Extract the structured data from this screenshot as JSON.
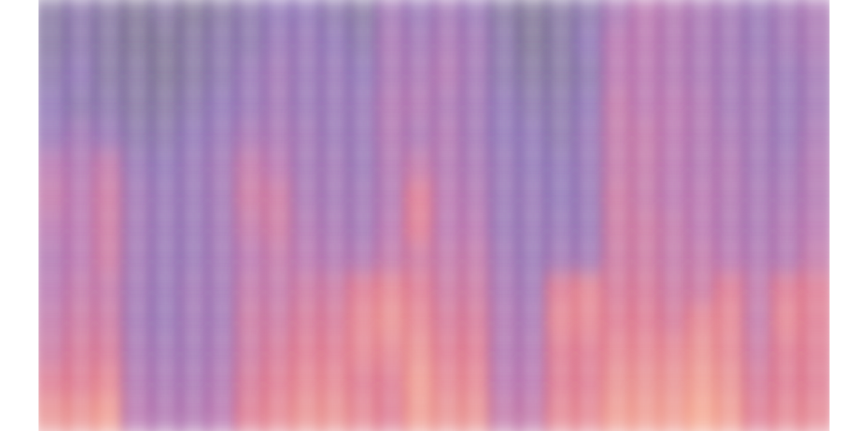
{
  "chart_data": {
    "type": "heatmap",
    "tick_labels": false,
    "xlim": [
      -0.5,
      27.5
    ],
    "ylim": [
      -0.5,
      13.5
    ],
    "color_range": [
      0,
      1
    ],
    "x": [
      0,
      1,
      2,
      3,
      4,
      5,
      6,
      7,
      8,
      9,
      10,
      11,
      12,
      13,
      14,
      15,
      16,
      17,
      18,
      19,
      20,
      21,
      22,
      23,
      24,
      25,
      26,
      27
    ],
    "y": [
      13,
      12,
      11,
      10,
      9,
      8,
      7,
      6,
      5,
      4,
      3,
      2,
      1,
      0
    ],
    "cells": [
      [
        0.15,
        0.2,
        0.15,
        0.1,
        0.15,
        0.1,
        0.15,
        0.2,
        0.25,
        0.25,
        0.2,
        0.15,
        0.35,
        0.3,
        0.35,
        0.3,
        0.15,
        0.1,
        0.15,
        0.2,
        0.4,
        0.5,
        0.45,
        0.4,
        0.35,
        0.3,
        0.35,
        0.4
      ],
      [
        0.15,
        0.2,
        0.15,
        0.1,
        0.1,
        0.15,
        0.2,
        0.2,
        0.3,
        0.3,
        0.25,
        0.2,
        0.4,
        0.35,
        0.4,
        0.35,
        0.2,
        0.1,
        0.15,
        0.25,
        0.5,
        0.5,
        0.45,
        0.4,
        0.35,
        0.3,
        0.35,
        0.4
      ],
      [
        0.2,
        0.25,
        0.15,
        0.15,
        0.1,
        0.15,
        0.2,
        0.3,
        0.35,
        0.3,
        0.3,
        0.25,
        0.4,
        0.4,
        0.45,
        0.35,
        0.2,
        0.15,
        0.15,
        0.2,
        0.5,
        0.5,
        0.45,
        0.4,
        0.35,
        0.35,
        0.3,
        0.35
      ],
      [
        0.25,
        0.2,
        0.2,
        0.15,
        0.15,
        0.2,
        0.25,
        0.3,
        0.35,
        0.3,
        0.3,
        0.3,
        0.45,
        0.45,
        0.4,
        0.35,
        0.25,
        0.2,
        0.2,
        0.25,
        0.55,
        0.5,
        0.5,
        0.45,
        0.35,
        0.35,
        0.3,
        0.35
      ],
      [
        0.3,
        0.35,
        0.3,
        0.2,
        0.2,
        0.25,
        0.3,
        0.4,
        0.4,
        0.35,
        0.3,
        0.3,
        0.45,
        0.4,
        0.45,
        0.35,
        0.25,
        0.25,
        0.2,
        0.3,
        0.55,
        0.55,
        0.5,
        0.45,
        0.4,
        0.35,
        0.3,
        0.4
      ],
      [
        0.5,
        0.45,
        0.55,
        0.3,
        0.25,
        0.3,
        0.35,
        0.55,
        0.5,
        0.35,
        0.35,
        0.3,
        0.45,
        0.55,
        0.45,
        0.4,
        0.3,
        0.25,
        0.25,
        0.3,
        0.55,
        0.55,
        0.5,
        0.45,
        0.45,
        0.35,
        0.35,
        0.45
      ],
      [
        0.55,
        0.5,
        0.6,
        0.35,
        0.3,
        0.3,
        0.35,
        0.6,
        0.6,
        0.4,
        0.35,
        0.35,
        0.45,
        0.7,
        0.5,
        0.45,
        0.3,
        0.3,
        0.25,
        0.3,
        0.6,
        0.55,
        0.5,
        0.5,
        0.45,
        0.4,
        0.4,
        0.45
      ],
      [
        0.5,
        0.5,
        0.6,
        0.35,
        0.3,
        0.3,
        0.35,
        0.55,
        0.6,
        0.45,
        0.4,
        0.35,
        0.5,
        0.7,
        0.5,
        0.5,
        0.3,
        0.3,
        0.3,
        0.3,
        0.6,
        0.6,
        0.55,
        0.5,
        0.45,
        0.4,
        0.45,
        0.5
      ],
      [
        0.45,
        0.5,
        0.6,
        0.35,
        0.3,
        0.3,
        0.35,
        0.5,
        0.55,
        0.5,
        0.45,
        0.45,
        0.55,
        0.6,
        0.55,
        0.55,
        0.35,
        0.3,
        0.35,
        0.35,
        0.6,
        0.6,
        0.55,
        0.55,
        0.5,
        0.45,
        0.45,
        0.55
      ],
      [
        0.5,
        0.55,
        0.55,
        0.35,
        0.3,
        0.35,
        0.35,
        0.55,
        0.55,
        0.6,
        0.6,
        0.7,
        0.75,
        0.7,
        0.6,
        0.6,
        0.4,
        0.35,
        0.7,
        0.75,
        0.65,
        0.65,
        0.6,
        0.6,
        0.7,
        0.55,
        0.7,
        0.7
      ],
      [
        0.55,
        0.6,
        0.6,
        0.35,
        0.3,
        0.35,
        0.35,
        0.6,
        0.6,
        0.65,
        0.65,
        0.75,
        0.8,
        0.75,
        0.65,
        0.65,
        0.45,
        0.4,
        0.75,
        0.75,
        0.7,
        0.7,
        0.65,
        0.75,
        0.75,
        0.55,
        0.75,
        0.7
      ],
      [
        0.6,
        0.65,
        0.65,
        0.4,
        0.35,
        0.35,
        0.4,
        0.6,
        0.65,
        0.7,
        0.7,
        0.75,
        0.75,
        0.8,
        0.7,
        0.7,
        0.45,
        0.45,
        0.7,
        0.7,
        0.75,
        0.75,
        0.75,
        0.8,
        0.75,
        0.6,
        0.7,
        0.7
      ],
      [
        0.7,
        0.7,
        0.75,
        0.45,
        0.4,
        0.4,
        0.45,
        0.65,
        0.7,
        0.75,
        0.75,
        0.7,
        0.7,
        0.85,
        0.75,
        0.75,
        0.5,
        0.5,
        0.7,
        0.7,
        0.8,
        0.8,
        0.8,
        0.85,
        0.8,
        0.65,
        0.7,
        0.7
      ],
      [
        0.8,
        0.8,
        0.85,
        0.5,
        0.45,
        0.45,
        0.5,
        0.7,
        0.75,
        0.8,
        0.8,
        0.75,
        0.7,
        0.85,
        0.8,
        0.8,
        0.55,
        0.55,
        0.75,
        0.75,
        0.85,
        0.85,
        0.85,
        0.9,
        0.85,
        0.7,
        0.75,
        0.75
      ]
    ]
  }
}
